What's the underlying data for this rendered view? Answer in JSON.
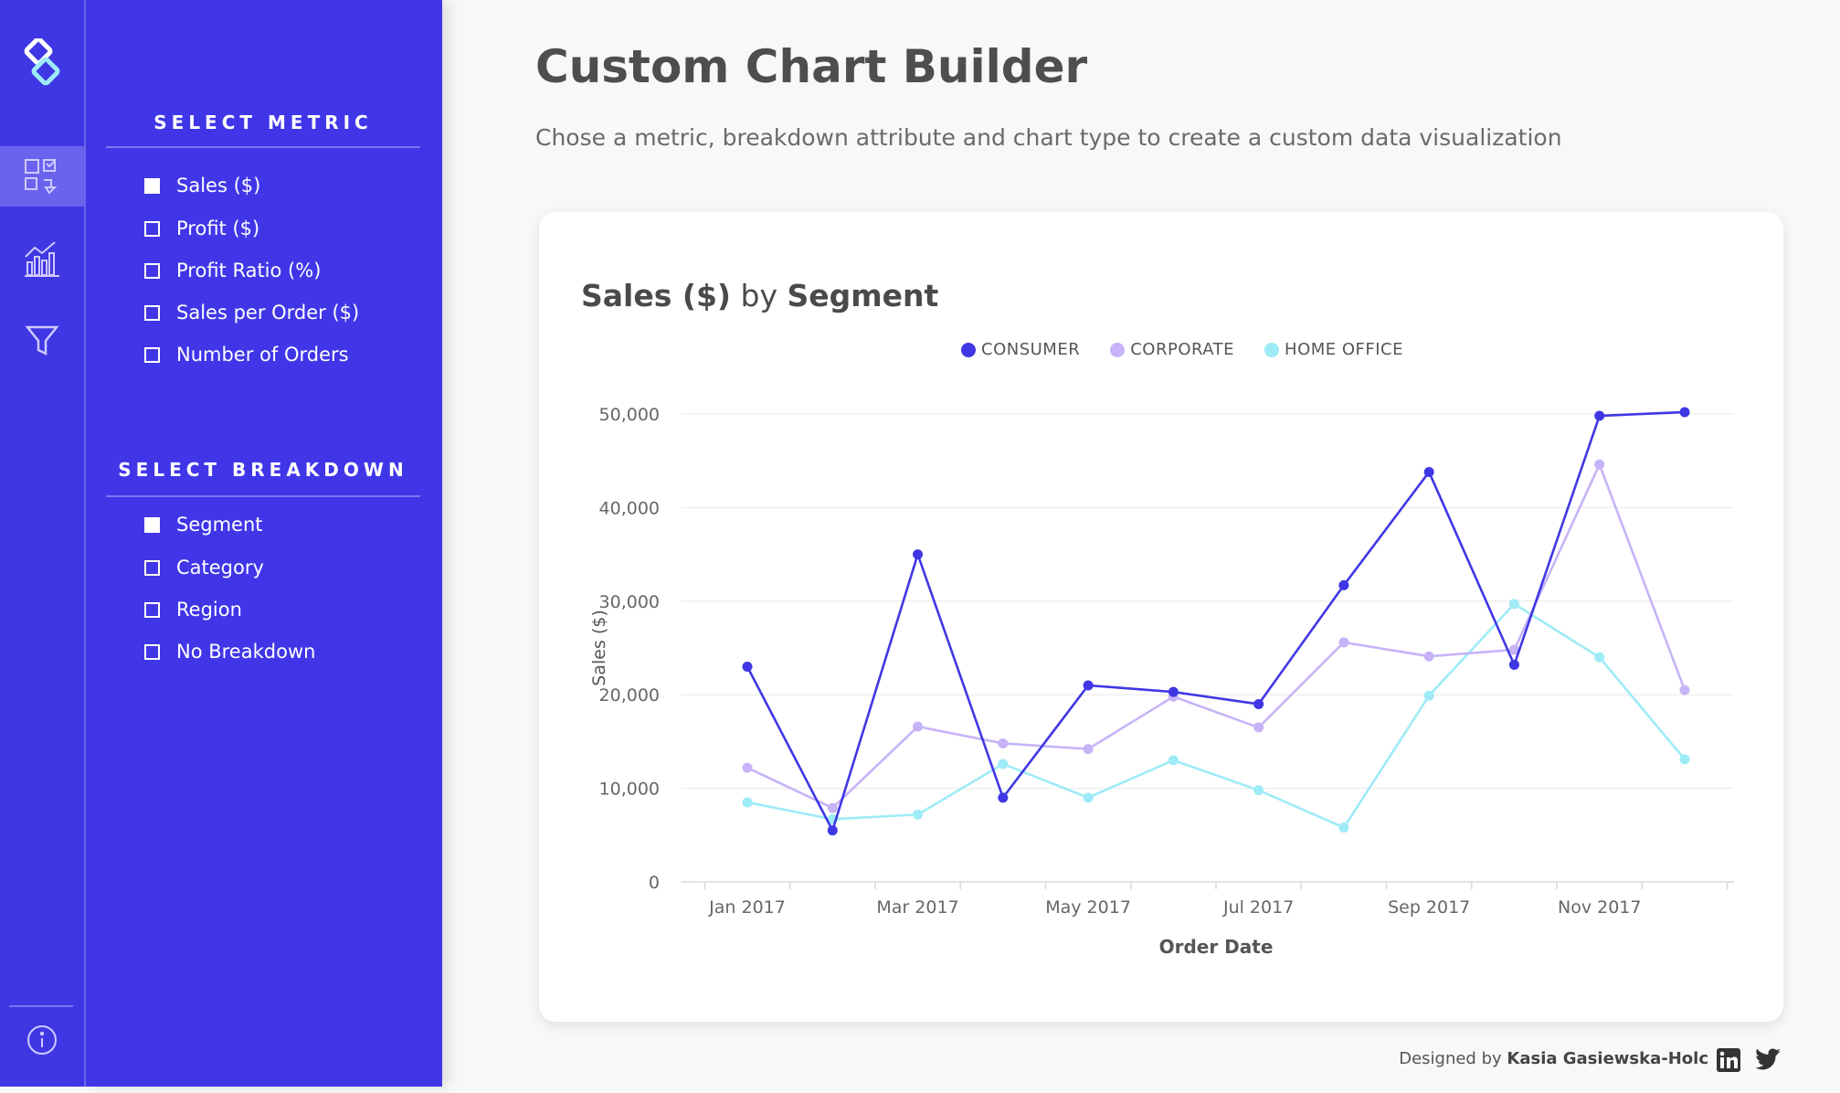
{
  "sidebar": {
    "metric_title": "SELECT METRIC",
    "metrics": [
      {
        "label": "Sales ($)",
        "checked": true
      },
      {
        "label": "Profit ($)",
        "checked": false
      },
      {
        "label": "Profit Ratio (%)",
        "checked": false
      },
      {
        "label": "Sales per Order ($)",
        "checked": false
      },
      {
        "label": "Number of Orders",
        "checked": false
      }
    ],
    "breakdown_title": "SELECT BREAKDOWN",
    "breakdowns": [
      {
        "label": "Segment",
        "checked": true
      },
      {
        "label": "Category",
        "checked": false
      },
      {
        "label": "Region",
        "checked": false
      },
      {
        "label": "No Breakdown",
        "checked": false
      }
    ]
  },
  "rail": {
    "icons": [
      "logo-icon",
      "builder-icon",
      "chart-icon",
      "filter-icon",
      "info-icon"
    ],
    "active": "builder-icon",
    "colors": {
      "rail": "#3f37e4",
      "panel": "#4036e8",
      "active": "#6a63ee"
    }
  },
  "header": {
    "title": "Custom Chart Builder",
    "subtitle": "Chose a metric, breakdown attribute and chart type to create a custom data visualization"
  },
  "card": {
    "title_metric": "Sales ($)",
    "title_by": "by",
    "title_breakdown": "Segment"
  },
  "chart_data": {
    "type": "line",
    "xlabel": "Order Date",
    "ylabel": "Sales ($)",
    "ylim": [
      0,
      50000
    ],
    "yticks": [
      0,
      10000,
      20000,
      30000,
      40000,
      50000
    ],
    "ytick_labels": [
      "0",
      "10,000",
      "20,000",
      "30,000",
      "40,000",
      "50,000"
    ],
    "x": [
      "Jan 2017",
      "Feb 2017",
      "Mar 2017",
      "Apr 2017",
      "May 2017",
      "Jun 2017",
      "Jul 2017",
      "Aug 2017",
      "Sep 2017",
      "Oct 2017",
      "Nov 2017",
      "Dec 2017"
    ],
    "xtick_labels": [
      "Jan 2017",
      "Mar 2017",
      "May 2017",
      "Jul 2017",
      "Sep 2017",
      "Nov 2017"
    ],
    "grid": true,
    "legend_position": "top-center",
    "series": [
      {
        "name": "CONSUMER",
        "color": "#3f37e4",
        "values": [
          23000,
          5500,
          35000,
          9000,
          21000,
          20300,
          19000,
          31700,
          43800,
          23200,
          49800,
          50200
        ]
      },
      {
        "name": "CORPORATE",
        "color": "#c7b3f7",
        "values": [
          12200,
          7900,
          16600,
          14800,
          14200,
          19800,
          16500,
          25600,
          24100,
          24800,
          44600,
          20500
        ]
      },
      {
        "name": "HOME OFFICE",
        "color": "#9eebf7",
        "values": [
          8500,
          6700,
          7200,
          12600,
          9000,
          13000,
          9800,
          5800,
          19900,
          29700,
          24000,
          13100
        ]
      }
    ]
  },
  "footer": {
    "designed_by": "Designed by",
    "author": "Kasia Gasiewska-Holc"
  }
}
